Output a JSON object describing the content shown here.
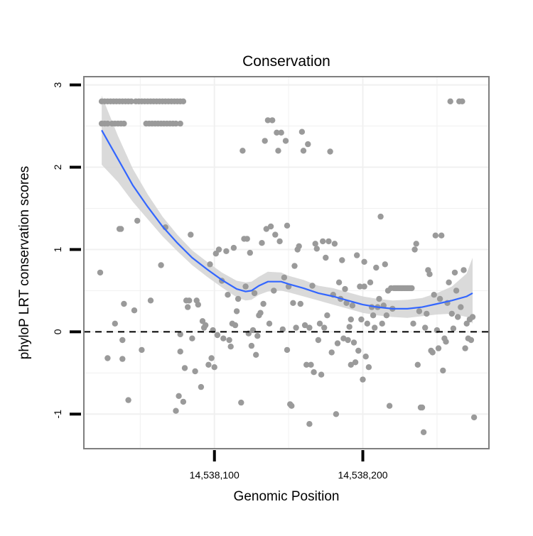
{
  "chart_data": {
    "type": "scatter",
    "title": "Conservation",
    "xlabel": "Genomic Position",
    "ylabel": "phyloP LRT conservation scores",
    "xlim": [
      14538012,
      14538285
    ],
    "ylim": [
      -1.42,
      3.1
    ],
    "x_ticks": [
      {
        "value": 14538100,
        "label": "14,538,100"
      },
      {
        "value": 14538200,
        "label": "14,538,200"
      }
    ],
    "y_ticks": [
      {
        "value": -1,
        "label": "-1"
      },
      {
        "value": 0,
        "label": "0"
      },
      {
        "value": 1,
        "label": "1"
      },
      {
        "value": 2,
        "label": "2"
      },
      {
        "value": 3,
        "label": "3"
      }
    ],
    "grid": true,
    "reference_line": {
      "y": 0,
      "style": "dashed"
    },
    "colors": {
      "points": "#9a9a9a",
      "smooth_line": "#3366ff",
      "confidence_band": "#d3d3d3",
      "panel_border": "#7f7f7f",
      "grid": "#f0f0f0"
    },
    "points": [
      [
        14538024,
        2.8
      ],
      [
        14538026,
        2.8
      ],
      [
        14538028,
        2.8
      ],
      [
        14538030,
        2.8
      ],
      [
        14538032,
        2.8
      ],
      [
        14538034,
        2.8
      ],
      [
        14538036,
        2.8
      ],
      [
        14538038,
        2.8
      ],
      [
        14538040,
        2.8
      ],
      [
        14538042,
        2.8
      ],
      [
        14538044,
        2.8
      ],
      [
        14538047,
        2.8
      ],
      [
        14538049,
        2.8
      ],
      [
        14538051,
        2.8
      ],
      [
        14538053,
        2.8
      ],
      [
        14538055,
        2.8
      ],
      [
        14538057,
        2.8
      ],
      [
        14538059,
        2.8
      ],
      [
        14538061,
        2.8
      ],
      [
        14538063,
        2.8
      ],
      [
        14538065,
        2.8
      ],
      [
        14538067,
        2.8
      ],
      [
        14538069,
        2.8
      ],
      [
        14538071,
        2.8
      ],
      [
        14538073,
        2.8
      ],
      [
        14538075,
        2.8
      ],
      [
        14538077,
        2.8
      ],
      [
        14538079,
        2.8
      ],
      [
        14538024,
        2.53
      ],
      [
        14538026,
        2.53
      ],
      [
        14538028,
        2.53
      ],
      [
        14538031,
        2.53
      ],
      [
        14538033,
        2.53
      ],
      [
        14538035,
        2.53
      ],
      [
        14538037,
        2.53
      ],
      [
        14538039,
        2.53
      ],
      [
        14538054,
        2.53
      ],
      [
        14538056,
        2.53
      ],
      [
        14538058,
        2.53
      ],
      [
        14538060,
        2.53
      ],
      [
        14538062,
        2.53
      ],
      [
        14538064,
        2.53
      ],
      [
        14538066,
        2.53
      ],
      [
        14538068,
        2.53
      ],
      [
        14538070,
        2.53
      ],
      [
        14538072,
        2.53
      ],
      [
        14538074,
        2.53
      ],
      [
        14538077,
        2.53
      ],
      [
        14538023,
        0.72
      ],
      [
        14538028,
        -0.32
      ],
      [
        14538033,
        0.1
      ],
      [
        14538036,
        1.25
      ],
      [
        14538037,
        1.25
      ],
      [
        14538038,
        -0.33
      ],
      [
        14538038,
        -0.1
      ],
      [
        14538039,
        0.34
      ],
      [
        14538042,
        -0.83
      ],
      [
        14538046,
        0.26
      ],
      [
        14538048,
        1.35
      ],
      [
        14538051,
        -0.22
      ],
      [
        14538057,
        0.38
      ],
      [
        14538064,
        0.81
      ],
      [
        14538067,
        1.27
      ],
      [
        14538074,
        -0.96
      ],
      [
        14538076,
        -0.78
      ],
      [
        14538077,
        -0.24
      ],
      [
        14538077,
        -0.03
      ],
      [
        14538079,
        -0.85
      ],
      [
        14538080,
        -0.44
      ],
      [
        14538081,
        0.38
      ],
      [
        14538082,
        0.3
      ],
      [
        14538083,
        0.38
      ],
      [
        14538084,
        1.18
      ],
      [
        14538085,
        -0.08
      ],
      [
        14538087,
        -0.48
      ],
      [
        14538088,
        0.38
      ],
      [
        14538089,
        0.33
      ],
      [
        14538091,
        -0.67
      ],
      [
        14538092,
        0.13
      ],
      [
        14538093,
        0.05
      ],
      [
        14538094,
        0.08
      ],
      [
        14538096,
        -0.4
      ],
      [
        14538097,
        0.82
      ],
      [
        14538098,
        -0.32
      ],
      [
        14538099,
        0.02
      ],
      [
        14538100,
        -0.43
      ],
      [
        14538101,
        0.95
      ],
      [
        14538102,
        -0.04
      ],
      [
        14538103,
        1
      ],
      [
        14538105,
        0.62
      ],
      [
        14538106,
        -0.08
      ],
      [
        14538108,
        0.98
      ],
      [
        14538109,
        0.45
      ],
      [
        14538110,
        -0.1
      ],
      [
        14538111,
        -0.18
      ],
      [
        14538112,
        0.1
      ],
      [
        14538113,
        1.02
      ],
      [
        14538114,
        0.08
      ],
      [
        14538115,
        0.25
      ],
      [
        14538116,
        0.4
      ],
      [
        14538118,
        -0.86
      ],
      [
        14538119,
        2.2
      ],
      [
        14538120,
        1.13
      ],
      [
        14538121,
        0.55
      ],
      [
        14538122,
        1.13
      ],
      [
        14538123,
        -0.02
      ],
      [
        14538124,
        0.96
      ],
      [
        14538125,
        -0.17
      ],
      [
        14538126,
        0.02
      ],
      [
        14538127,
        0.47
      ],
      [
        14538128,
        -0.28
      ],
      [
        14538129,
        -0.05
      ],
      [
        14538130,
        0.2
      ],
      [
        14538131,
        0.23
      ],
      [
        14538132,
        1.08
      ],
      [
        14538133,
        0.34
      ],
      [
        14538134,
        2.32
      ],
      [
        14538135,
        1.25
      ],
      [
        14538136,
        2.57
      ],
      [
        14538137,
        0.1
      ],
      [
        14538138,
        1.28
      ],
      [
        14538139,
        2.57
      ],
      [
        14538140,
        0.5
      ],
      [
        14538141,
        1.18
      ],
      [
        14538142,
        2.42
      ],
      [
        14538143,
        2.2
      ],
      [
        14538144,
        1.1
      ],
      [
        14538145,
        2.42
      ],
      [
        14538146,
        0.03
      ],
      [
        14538147,
        0.66
      ],
      [
        14538148,
        2.32
      ],
      [
        14538149,
        1.29
      ],
      [
        14538149,
        -0.22
      ],
      [
        14538150,
        0.55
      ],
      [
        14538151,
        -0.88
      ],
      [
        14538152,
        -0.9
      ],
      [
        14538153,
        0.35
      ],
      [
        14538154,
        0.8
      ],
      [
        14538155,
        0.05
      ],
      [
        14538156,
        1
      ],
      [
        14538157,
        1.04
      ],
      [
        14538158,
        0.34
      ],
      [
        14538159,
        2.43
      ],
      [
        14538160,
        2.2
      ],
      [
        14538161,
        0.08
      ],
      [
        14538162,
        -0.4
      ],
      [
        14538163,
        2.28
      ],
      [
        14538164,
        0.05
      ],
      [
        14538164,
        -1.12
      ],
      [
        14538165,
        -0.4
      ],
      [
        14538166,
        0.56
      ],
      [
        14538167,
        -0.49
      ],
      [
        14538168,
        1.07
      ],
      [
        14538169,
        1.01
      ],
      [
        14538170,
        -0.1
      ],
      [
        14538171,
        0.1
      ],
      [
        14538172,
        -0.52
      ],
      [
        14538173,
        1.1
      ],
      [
        14538174,
        0.05
      ],
      [
        14538175,
        0.9
      ],
      [
        14538176,
        0.2
      ],
      [
        14538177,
        1.1
      ],
      [
        14538178,
        2.19
      ],
      [
        14538179,
        -0.25
      ],
      [
        14538180,
        0.45
      ],
      [
        14538181,
        1.07
      ],
      [
        14538182,
        -1.0
      ],
      [
        14538183,
        -0.14
      ],
      [
        14538184,
        0.6
      ],
      [
        14538185,
        0.4
      ],
      [
        14538186,
        0.87
      ],
      [
        14538187,
        -0.08
      ],
      [
        14538188,
        0.52
      ],
      [
        14538189,
        0.35
      ],
      [
        14538190,
        -0.1
      ],
      [
        14538191,
        0.06
      ],
      [
        14538192,
        0.15
      ],
      [
        14538192,
        -0.4
      ],
      [
        14538193,
        0.32
      ],
      [
        14538194,
        -0.13
      ],
      [
        14538195,
        -0.37
      ],
      [
        14538196,
        0.93
      ],
      [
        14538197,
        -0.23
      ],
      [
        14538198,
        0.55
      ],
      [
        14538199,
        0.15
      ],
      [
        14538200,
        -0.58
      ],
      [
        14538201,
        0.55
      ],
      [
        14538201,
        0.85
      ],
      [
        14538202,
        -0.3
      ],
      [
        14538203,
        0.1
      ],
      [
        14538204,
        -0.43
      ],
      [
        14538205,
        0.6
      ],
      [
        14538206,
        0.3
      ],
      [
        14538207,
        0.2
      ],
      [
        14538208,
        0.05
      ],
      [
        14538209,
        0.78
      ],
      [
        14538210,
        0.3
      ],
      [
        14538211,
        0.4
      ],
      [
        14538212,
        1.4
      ],
      [
        14538213,
        0.1
      ],
      [
        14538214,
        0.32
      ],
      [
        14538215,
        0.82
      ],
      [
        14538216,
        0.2
      ],
      [
        14538217,
        0.5
      ],
      [
        14538218,
        -0.9
      ],
      [
        14538219,
        0.53
      ],
      [
        14538220,
        0.28
      ],
      [
        14538221,
        0.53
      ],
      [
        14538222,
        0.53
      ],
      [
        14538223,
        0.53
      ],
      [
        14538224,
        0.53
      ],
      [
        14538225,
        0.53
      ],
      [
        14538226,
        0.53
      ],
      [
        14538227,
        0.53
      ],
      [
        14538228,
        0.53
      ],
      [
        14538229,
        0.53
      ],
      [
        14538230,
        0.53
      ],
      [
        14538231,
        0.53
      ],
      [
        14538232,
        0.53
      ],
      [
        14538233,
        0.53
      ],
      [
        14538234,
        0.1
      ],
      [
        14538235,
        1.0
      ],
      [
        14538236,
        1.07
      ],
      [
        14538237,
        -0.4
      ],
      [
        14538238,
        0.25
      ],
      [
        14538239,
        -0.92
      ],
      [
        14538240,
        -0.92
      ],
      [
        14538241,
        -1.22
      ],
      [
        14538242,
        0.05
      ],
      [
        14538243,
        0.22
      ],
      [
        14538244,
        0.75
      ],
      [
        14538245,
        0.7
      ],
      [
        14538246,
        -0.23
      ],
      [
        14538247,
        -0.25
      ],
      [
        14538248,
        0.45
      ],
      [
        14538249,
        1.17
      ],
      [
        14538250,
        0.02
      ],
      [
        14538251,
        -0.2
      ],
      [
        14538252,
        0.4
      ],
      [
        14538253,
        1.17
      ],
      [
        14538254,
        -0.47
      ],
      [
        14538255,
        -0.08
      ],
      [
        14538256,
        -0.12
      ],
      [
        14538257,
        0.35
      ],
      [
        14538258,
        0.6
      ],
      [
        14538259,
        2.8
      ],
      [
        14538260,
        0.22
      ],
      [
        14538261,
        0.04
      ],
      [
        14538262,
        0.72
      ],
      [
        14538263,
        0.5
      ],
      [
        14538264,
        0.18
      ],
      [
        14538265,
        2.8
      ],
      [
        14538266,
        0.3
      ],
      [
        14538267,
        2.8
      ],
      [
        14538268,
        0.75
      ],
      [
        14538269,
        -0.2
      ],
      [
        14538270,
        0.1
      ],
      [
        14538271,
        -0.08
      ],
      [
        14538272,
        0.15
      ],
      [
        14538273,
        -0.1
      ],
      [
        14538274,
        0.18
      ],
      [
        14538275,
        -1.04
      ]
    ],
    "smooth_fit": {
      "method": "loess",
      "x": [
        14538024,
        14538035,
        14538045,
        14538055,
        14538065,
        14538075,
        14538085,
        14538095,
        14538105,
        14538115,
        14538121,
        14538125,
        14538130,
        14538136,
        14538145,
        14538150,
        14538160,
        14538170,
        14538180,
        14538190,
        14538200,
        14538210,
        14538220,
        14538230,
        14538240,
        14538250,
        14538260,
        14538270,
        14538274
      ],
      "y": [
        2.45,
        2.1,
        1.78,
        1.52,
        1.28,
        1.08,
        0.9,
        0.76,
        0.63,
        0.52,
        0.49,
        0.5,
        0.56,
        0.61,
        0.61,
        0.58,
        0.53,
        0.47,
        0.43,
        0.38,
        0.33,
        0.3,
        0.28,
        0.28,
        0.3,
        0.34,
        0.38,
        0.43,
        0.47
      ],
      "lower": [
        2.03,
        1.82,
        1.58,
        1.37,
        1.16,
        0.98,
        0.81,
        0.67,
        0.54,
        0.42,
        0.38,
        0.39,
        0.45,
        0.49,
        0.5,
        0.48,
        0.43,
        0.38,
        0.33,
        0.28,
        0.23,
        0.2,
        0.18,
        0.17,
        0.19,
        0.21,
        0.22,
        0.18,
        0.1
      ],
      "upper": [
        2.87,
        2.38,
        1.98,
        1.67,
        1.4,
        1.18,
        0.99,
        0.85,
        0.72,
        0.62,
        0.6,
        0.61,
        0.67,
        0.73,
        0.72,
        0.68,
        0.63,
        0.56,
        0.53,
        0.48,
        0.43,
        0.4,
        0.38,
        0.39,
        0.41,
        0.47,
        0.55,
        0.71,
        0.9
      ]
    }
  }
}
